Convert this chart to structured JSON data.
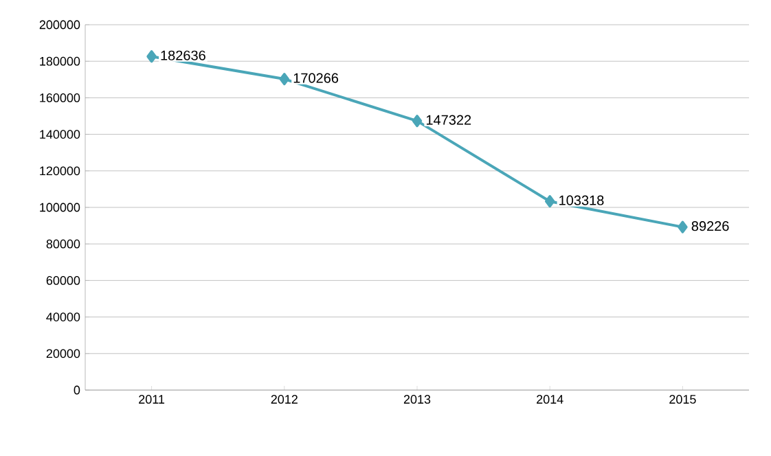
{
  "chart_data": {
    "type": "line",
    "categories": [
      "2011",
      "2012",
      "2013",
      "2014",
      "2015"
    ],
    "values": [
      182636,
      170266,
      147322,
      103318,
      89226
    ],
    "color": "#4aa6b8",
    "marker": "diamond",
    "line_style": "solid",
    "data_labels": true,
    "grid": "y",
    "ylim": [
      0,
      200000
    ],
    "yticks": [
      0,
      20000,
      40000,
      60000,
      80000,
      100000,
      120000,
      140000,
      160000,
      180000,
      200000
    ]
  }
}
